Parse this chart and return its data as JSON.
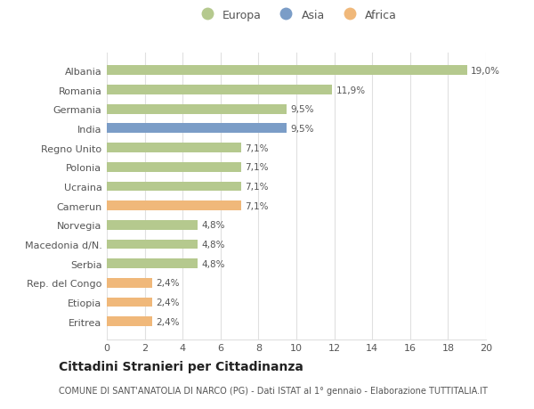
{
  "countries": [
    "Albania",
    "Romania",
    "Germania",
    "India",
    "Regno Unito",
    "Polonia",
    "Ucraina",
    "Camerun",
    "Norvegia",
    "Macedonia d/N.",
    "Serbia",
    "Rep. del Congo",
    "Etiopia",
    "Eritrea"
  ],
  "values": [
    19.0,
    11.9,
    9.5,
    9.5,
    7.1,
    7.1,
    7.1,
    7.1,
    4.8,
    4.8,
    4.8,
    2.4,
    2.4,
    2.4
  ],
  "labels": [
    "19,0%",
    "11,9%",
    "9,5%",
    "9,5%",
    "7,1%",
    "7,1%",
    "7,1%",
    "7,1%",
    "4,8%",
    "4,8%",
    "4,8%",
    "2,4%",
    "2,4%",
    "2,4%"
  ],
  "continents": [
    "Europa",
    "Europa",
    "Europa",
    "Asia",
    "Europa",
    "Europa",
    "Europa",
    "Africa",
    "Europa",
    "Europa",
    "Europa",
    "Africa",
    "Africa",
    "Africa"
  ],
  "colors": {
    "Europa": "#b5c98e",
    "Asia": "#7b9dc7",
    "Africa": "#f0b87a"
  },
  "title": "Cittadini Stranieri per Cittadinanza",
  "subtitle": "COMUNE DI SANT'ANATOLIA DI NARCO (PG) - Dati ISTAT al 1° gennaio - Elaborazione TUTTITALIA.IT",
  "xlim": [
    0,
    20
  ],
  "xticks": [
    0,
    2,
    4,
    6,
    8,
    10,
    12,
    14,
    16,
    18,
    20
  ],
  "background_color": "#ffffff",
  "grid_color": "#e0e0e0",
  "title_fontsize": 10,
  "subtitle_fontsize": 7,
  "label_fontsize": 7.5,
  "tick_fontsize": 8,
  "legend_fontsize": 9
}
